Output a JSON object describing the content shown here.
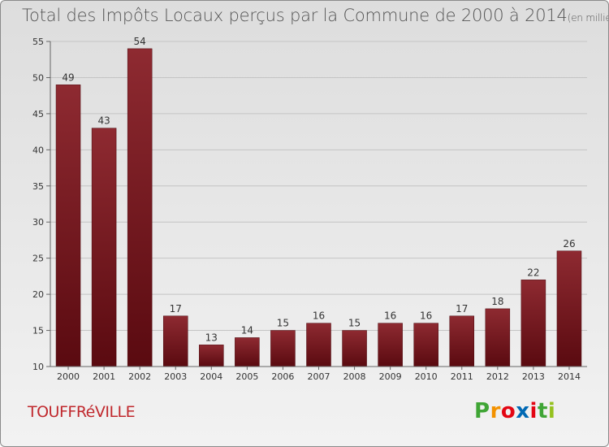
{
  "header": {
    "title": "Total des Impôts Locaux perçus par la Commune de 2000 à 2014",
    "unit": "(en milliers d'€)"
  },
  "footer": {
    "commune": "TOUFFRéVILLE",
    "brand_letters": [
      "P",
      "r",
      "o",
      "x",
      "i",
      "t",
      "i"
    ],
    "brand_colors": [
      "#3fa535",
      "#f39200",
      "#e30613",
      "#0069b4",
      "#e30613",
      "#3fa535",
      "#95c11f"
    ]
  },
  "chart_data": {
    "type": "bar",
    "title": "Total des Impôts Locaux perçus par la Commune de 2000 à 2014",
    "ylabel": "en milliers d'€",
    "xlabel": "",
    "categories": [
      "2000",
      "2001",
      "2002",
      "2003",
      "2004",
      "2005",
      "2006",
      "2007",
      "2008",
      "2009",
      "2010",
      "2011",
      "2012",
      "2013",
      "2014"
    ],
    "values": [
      49,
      43,
      54,
      17,
      13,
      14,
      15,
      16,
      15,
      16,
      16,
      17,
      18,
      22,
      26
    ],
    "ylim": [
      10,
      55
    ],
    "yticks": [
      10,
      15,
      20,
      25,
      30,
      35,
      40,
      45,
      50,
      55
    ],
    "grid": true,
    "bar_color": "#7a1c22"
  }
}
